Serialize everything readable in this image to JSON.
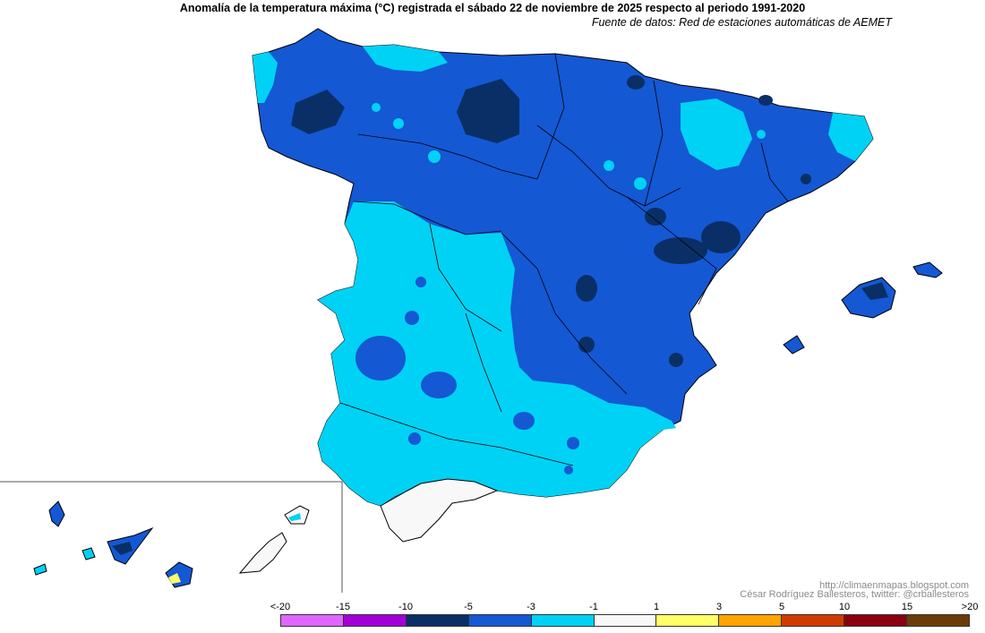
{
  "header": {
    "title": "Anomalía de la temperatura máxima (°C) registrada el sábado 22 de noviembre de 2025 respecto al periodo 1991-2020",
    "subtitle": "Fuente de datos: Red de estaciones automáticas de AEMET"
  },
  "credits": {
    "blog": "http://climaenmapas.blogspot.com",
    "author": "César Rodríguez Ballesteros, twitter: @crballesteros"
  },
  "legend": {
    "ticks": [
      "<-20",
      "-15",
      "-10",
      "-5",
      "-3",
      "-1",
      "1",
      "3",
      "5",
      "10",
      "15",
      ">20"
    ],
    "bins": [
      {
        "range": "<-20 a -15",
        "color": "#e066ff"
      },
      {
        "range": "-15 a -10",
        "color": "#a300d9"
      },
      {
        "range": "-10 a -5",
        "color": "#0a2f66"
      },
      {
        "range": "-5 a -3",
        "color": "#1458d4"
      },
      {
        "range": "-3 a -1",
        "color": "#00d2f5"
      },
      {
        "range": "-1 a 1",
        "color": "#f8f8f8"
      },
      {
        "range": "1 a 3",
        "color": "#ffff66"
      },
      {
        "range": "3 a 5",
        "color": "#ffa500"
      },
      {
        "range": "5 a 10",
        "color": "#d13b00"
      },
      {
        "range": "10 a 15",
        "color": "#8b0010"
      },
      {
        "range": "15 a >20",
        "color": "#6b3c07"
      }
    ]
  },
  "colors": {
    "very_cold": "#0a2f66",
    "cold": "#1458d4",
    "cool": "#00d2f5",
    "neutral": "#f8f8f8",
    "warm": "#ffff66",
    "border": "#000000"
  }
}
